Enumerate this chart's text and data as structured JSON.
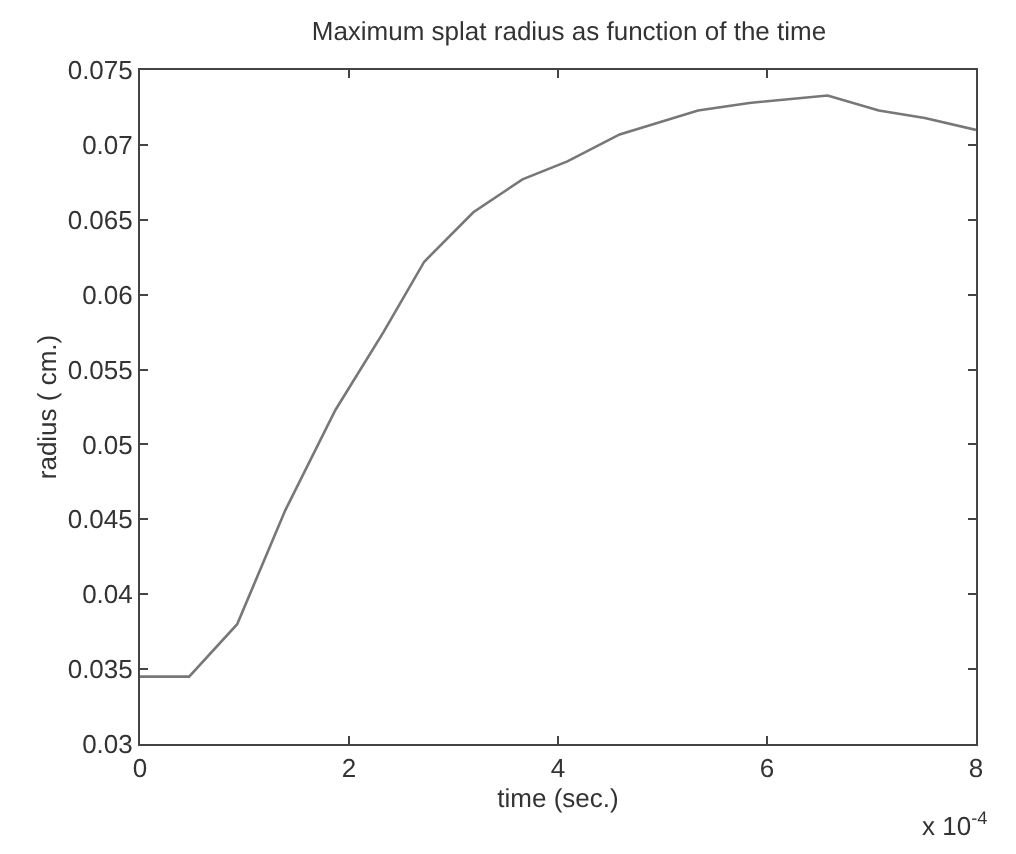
{
  "chart_data": {
    "type": "line",
    "title": "Maximum splat radius as function of the time",
    "xlabel": "time (sec.)",
    "ylabel": "radius ( cm.)",
    "annotations": [
      "x 10$^{-4}$"
    ],
    "x": [
      0,
      0.47,
      0.93,
      1.39,
      1.87,
      2.33,
      2.72,
      3.19,
      3.66,
      4.09,
      4.59,
      5.34,
      5.83,
      6.58,
      7.07,
      7.51,
      8
    ],
    "series": [
      {
        "color": "#777777",
        "values": [
          0.0345,
          0.0345,
          0.038,
          0.0456,
          0.0523,
          0.0575,
          0.0622,
          0.0655,
          0.0677,
          0.0689,
          0.0707,
          0.0723,
          0.0728,
          0.0733,
          0.0723,
          0.0718,
          0.071
        ]
      }
    ],
    "xlim": [
      0,
      8
    ],
    "xticks": [
      0,
      2,
      4,
      6,
      8
    ],
    "ylim": [
      0.03,
      0.075
    ],
    "yticks": [
      0.03,
      0.035,
      0.04,
      0.045,
      0.05,
      0.055,
      0.06,
      0.065,
      0.07,
      0.075
    ],
    "marker": "none",
    "line_style": "solid"
  }
}
